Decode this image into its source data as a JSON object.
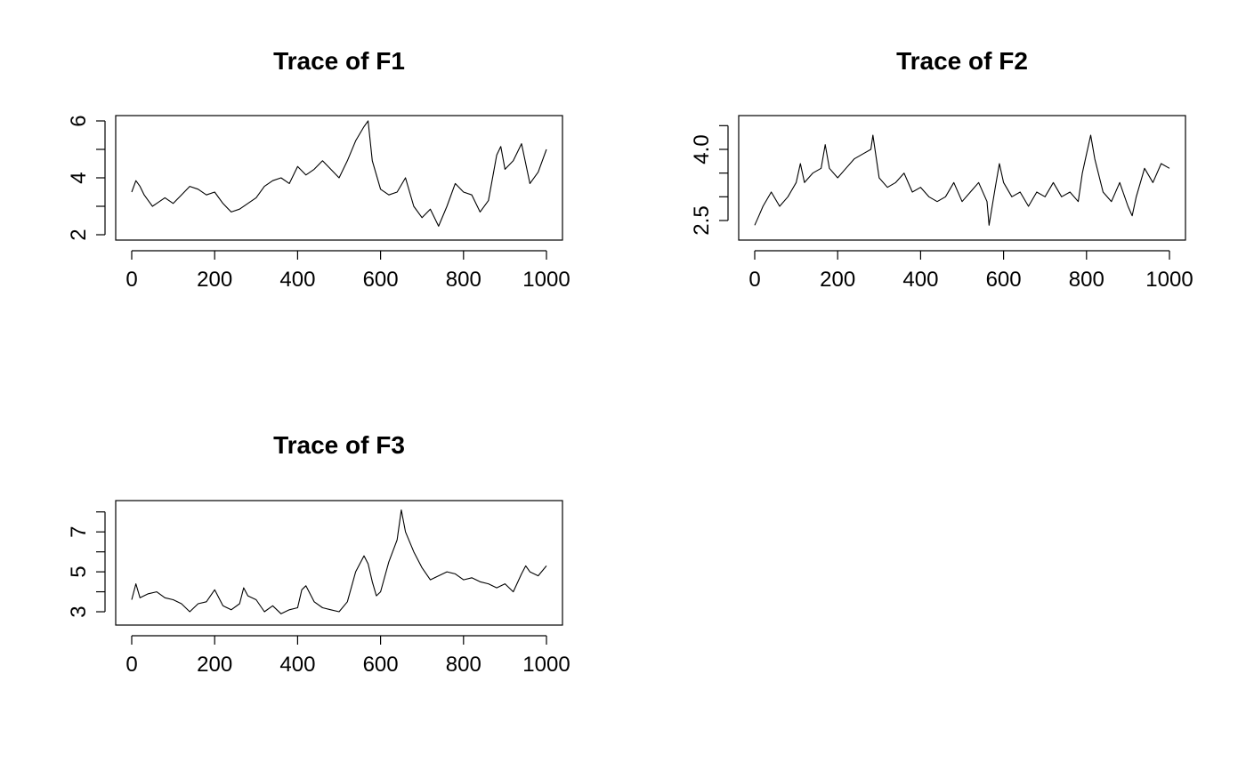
{
  "chart_data": [
    {
      "type": "line",
      "title": "Trace of F1",
      "xlabel": "",
      "ylabel": "",
      "xlim": [
        0,
        1000
      ],
      "ylim": [
        2,
        6
      ],
      "xticks": [
        0,
        200,
        400,
        600,
        800,
        1000
      ],
      "xtick_labels": [
        "0",
        "200",
        "400",
        "600",
        "800",
        "1000"
      ],
      "yticks": [
        2,
        3,
        4,
        5,
        6
      ],
      "ytick_labels": [
        "2",
        "",
        "4",
        "",
        "6"
      ],
      "grid": false,
      "series": [
        {
          "x": [
            0,
            10,
            20,
            30,
            40,
            50,
            60,
            80,
            100,
            120,
            140,
            160,
            180,
            200,
            220,
            240,
            260,
            280,
            300,
            320,
            340,
            360,
            380,
            400,
            420,
            440,
            460,
            480,
            500,
            520,
            540,
            560,
            570,
            580,
            600,
            620,
            640,
            660,
            680,
            700,
            720,
            740,
            760,
            780,
            800,
            820,
            840,
            860,
            880,
            890,
            900,
            920,
            940,
            960,
            980,
            1000
          ],
          "y": [
            3.5,
            3.9,
            3.7,
            3.4,
            3.2,
            3.0,
            3.1,
            3.3,
            3.1,
            3.4,
            3.7,
            3.6,
            3.4,
            3.5,
            3.1,
            2.8,
            2.9,
            3.1,
            3.3,
            3.7,
            3.9,
            4.0,
            3.8,
            4.4,
            4.1,
            4.3,
            4.6,
            4.3,
            4.0,
            4.6,
            5.3,
            5.8,
            6.0,
            4.6,
            3.6,
            3.4,
            3.5,
            4.0,
            3.0,
            2.6,
            2.9,
            2.3,
            3.0,
            3.8,
            3.5,
            3.4,
            2.8,
            3.2,
            4.8,
            5.1,
            4.3,
            4.6,
            5.2,
            3.8,
            4.2,
            5.0
          ]
        }
      ]
    },
    {
      "type": "line",
      "title": "Trace of F2",
      "xlabel": "",
      "ylabel": "",
      "xlim": [
        0,
        1000
      ],
      "ylim": [
        2.2,
        4.6
      ],
      "xticks": [
        0,
        200,
        400,
        600,
        800,
        1000
      ],
      "xtick_labels": [
        "0",
        "200",
        "400",
        "600",
        "800",
        "1000"
      ],
      "yticks": [
        2.5,
        3.0,
        3.5,
        4.0,
        4.5
      ],
      "ytick_labels": [
        "2.5",
        "",
        "",
        "4.0",
        ""
      ],
      "grid": false,
      "series": [
        {
          "x": [
            0,
            10,
            20,
            40,
            60,
            80,
            100,
            110,
            120,
            140,
            160,
            170,
            180,
            200,
            220,
            240,
            260,
            280,
            285,
            300,
            320,
            340,
            360,
            380,
            400,
            420,
            440,
            460,
            480,
            500,
            520,
            540,
            560,
            565,
            580,
            590,
            600,
            620,
            640,
            660,
            680,
            700,
            720,
            740,
            760,
            780,
            790,
            800,
            810,
            820,
            840,
            860,
            880,
            900,
            910,
            920,
            940,
            960,
            980,
            1000
          ],
          "y": [
            2.4,
            2.6,
            2.8,
            3.1,
            2.8,
            3.0,
            3.3,
            3.7,
            3.3,
            3.5,
            3.6,
            4.1,
            3.6,
            3.4,
            3.6,
            3.8,
            3.9,
            4.0,
            4.3,
            3.4,
            3.2,
            3.3,
            3.5,
            3.1,
            3.2,
            3.0,
            2.9,
            3.0,
            3.3,
            2.9,
            3.1,
            3.3,
            2.9,
            2.4,
            3.2,
            3.7,
            3.3,
            3.0,
            3.1,
            2.8,
            3.1,
            3.0,
            3.3,
            3.0,
            3.1,
            2.9,
            3.5,
            3.9,
            4.3,
            3.8,
            3.1,
            2.9,
            3.3,
            2.8,
            2.6,
            3.0,
            3.6,
            3.3,
            3.7,
            3.6
          ]
        }
      ]
    },
    {
      "type": "line",
      "title": "Trace of F3",
      "xlabel": "",
      "ylabel": "",
      "xlim": [
        0,
        1000
      ],
      "ylim": [
        2.6,
        8.3
      ],
      "xticks": [
        0,
        200,
        400,
        600,
        800,
        1000
      ],
      "xtick_labels": [
        "0",
        "200",
        "400",
        "600",
        "800",
        "1000"
      ],
      "yticks": [
        3,
        4,
        5,
        6,
        7,
        8
      ],
      "ytick_labels": [
        "3",
        "",
        "5",
        "",
        "7",
        ""
      ],
      "grid": false,
      "series": [
        {
          "x": [
            0,
            10,
            20,
            40,
            60,
            80,
            100,
            120,
            140,
            160,
            180,
            200,
            220,
            240,
            260,
            270,
            280,
            300,
            320,
            340,
            360,
            380,
            400,
            410,
            420,
            440,
            460,
            480,
            500,
            520,
            540,
            560,
            570,
            580,
            590,
            600,
            620,
            640,
            650,
            660,
            680,
            700,
            720,
            740,
            760,
            780,
            800,
            820,
            840,
            860,
            880,
            900,
            920,
            940,
            950,
            960,
            980,
            1000
          ],
          "y": [
            3.6,
            4.4,
            3.7,
            3.9,
            4.0,
            3.7,
            3.6,
            3.4,
            3.0,
            3.4,
            3.5,
            4.1,
            3.3,
            3.1,
            3.4,
            4.2,
            3.8,
            3.6,
            3.0,
            3.3,
            2.9,
            3.1,
            3.2,
            4.1,
            4.3,
            3.5,
            3.2,
            3.1,
            3.0,
            3.5,
            5.0,
            5.8,
            5.4,
            4.5,
            3.8,
            4.0,
            5.5,
            6.6,
            8.1,
            7.0,
            6.0,
            5.2,
            4.6,
            4.8,
            5.0,
            4.9,
            4.6,
            4.7,
            4.5,
            4.4,
            4.2,
            4.4,
            4.0,
            4.9,
            5.3,
            5.0,
            4.8,
            5.3
          ]
        }
      ]
    }
  ]
}
